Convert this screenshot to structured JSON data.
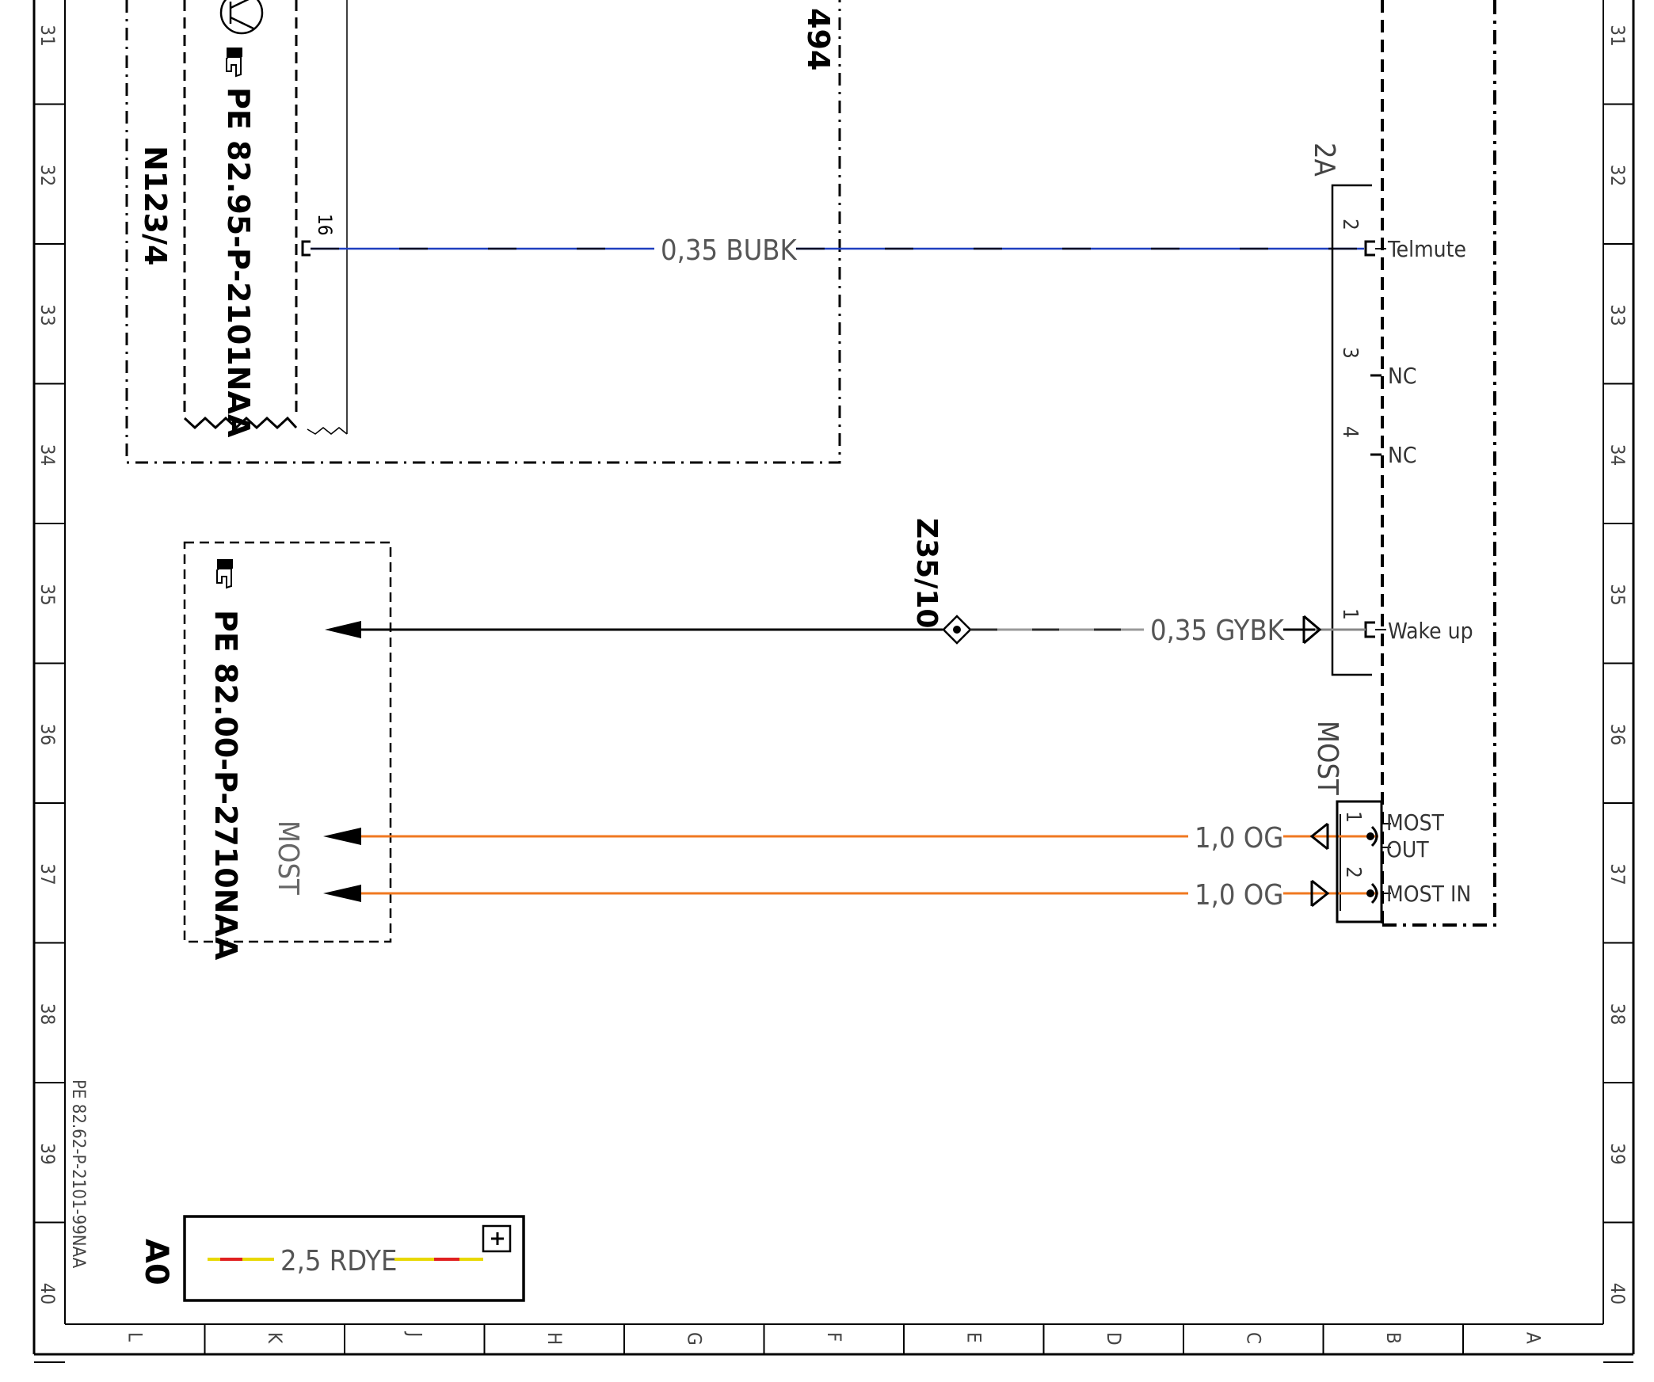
{
  "rows": [
    "31",
    "32",
    "33",
    "34",
    "35",
    "36",
    "37",
    "38",
    "39",
    "40"
  ],
  "columns": [
    "L",
    "K",
    "J",
    "H",
    "G",
    "F",
    "E",
    "D",
    "C",
    "B",
    "A"
  ],
  "frame_reference": "PE 82.62-P-2101-99NAA",
  "components": {
    "n123_4": {
      "label": "N123/4",
      "ref": "PE 82.95-P-2101NAA",
      "pin": "16",
      "partial_label": "494"
    },
    "connector_2a": {
      "label": "2A",
      "pins": [
        {
          "num": "2",
          "name": "Telmute"
        },
        {
          "num": "3",
          "name": "NC"
        },
        {
          "num": "4",
          "name": "NC"
        },
        {
          "num": "1",
          "name": "Wake up"
        }
      ]
    },
    "most_connector": {
      "label": "MOST",
      "pins": [
        {
          "num": "1",
          "name": "MOST",
          "name2": "OUT"
        },
        {
          "num": "2",
          "name": "MOST IN"
        }
      ]
    },
    "splice": {
      "label": "Z35/10"
    },
    "most_ref_box": {
      "ref": "PE 82.00-P-2710NAA",
      "label": "MOST"
    }
  },
  "wires": [
    {
      "label": "0,35 BUBK",
      "color": "#1f3fbf"
    },
    {
      "label": "0,35 GYBK",
      "color": "#9a9a9a"
    },
    {
      "label": "1,0 OG",
      "color": "#f07820"
    },
    {
      "label": "1,0 OG",
      "color": "#f07820"
    }
  ],
  "legend": {
    "code": "A0",
    "wire": "2,5 RDYE",
    "colors": [
      "#e8d800",
      "#e02020"
    ]
  }
}
